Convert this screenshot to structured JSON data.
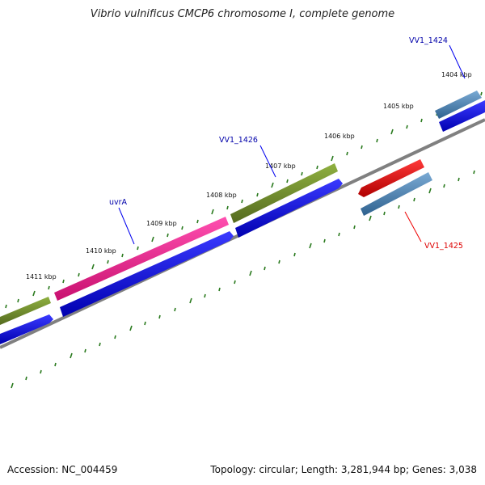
{
  "title": "Vibrio vulnificus CMCP6 chromosome I, complete genome",
  "footer": {
    "accession": "Accession: NC_004459",
    "summary": "Topology: circular; Length: 3,281,944 bp; Genes: 3,038"
  },
  "kbp_labels": [
    "1411 kbp",
    "1410 kbp",
    "1409 kbp",
    "1408 kbp",
    "1407 kbp",
    "1406 kbp",
    "1405 kbp",
    "1404 kbp"
  ],
  "gene_labels": {
    "uvrA": "uvrA",
    "vv1_1426": "VV1_1426",
    "vv1_1424": "VV1_1424",
    "vv1_1425": "VV1_1425"
  },
  "colors": {
    "green_gene": "#6b8e23",
    "magenta_gene": "#e8198c",
    "blue_cds": "#0000ee",
    "steel_gene": "#4682b4",
    "red_gene": "#ee0000",
    "backbone": "#808080",
    "tick": "#2a7a1e",
    "blue_label": "#0000aa",
    "red_label": "#dd0000"
  }
}
